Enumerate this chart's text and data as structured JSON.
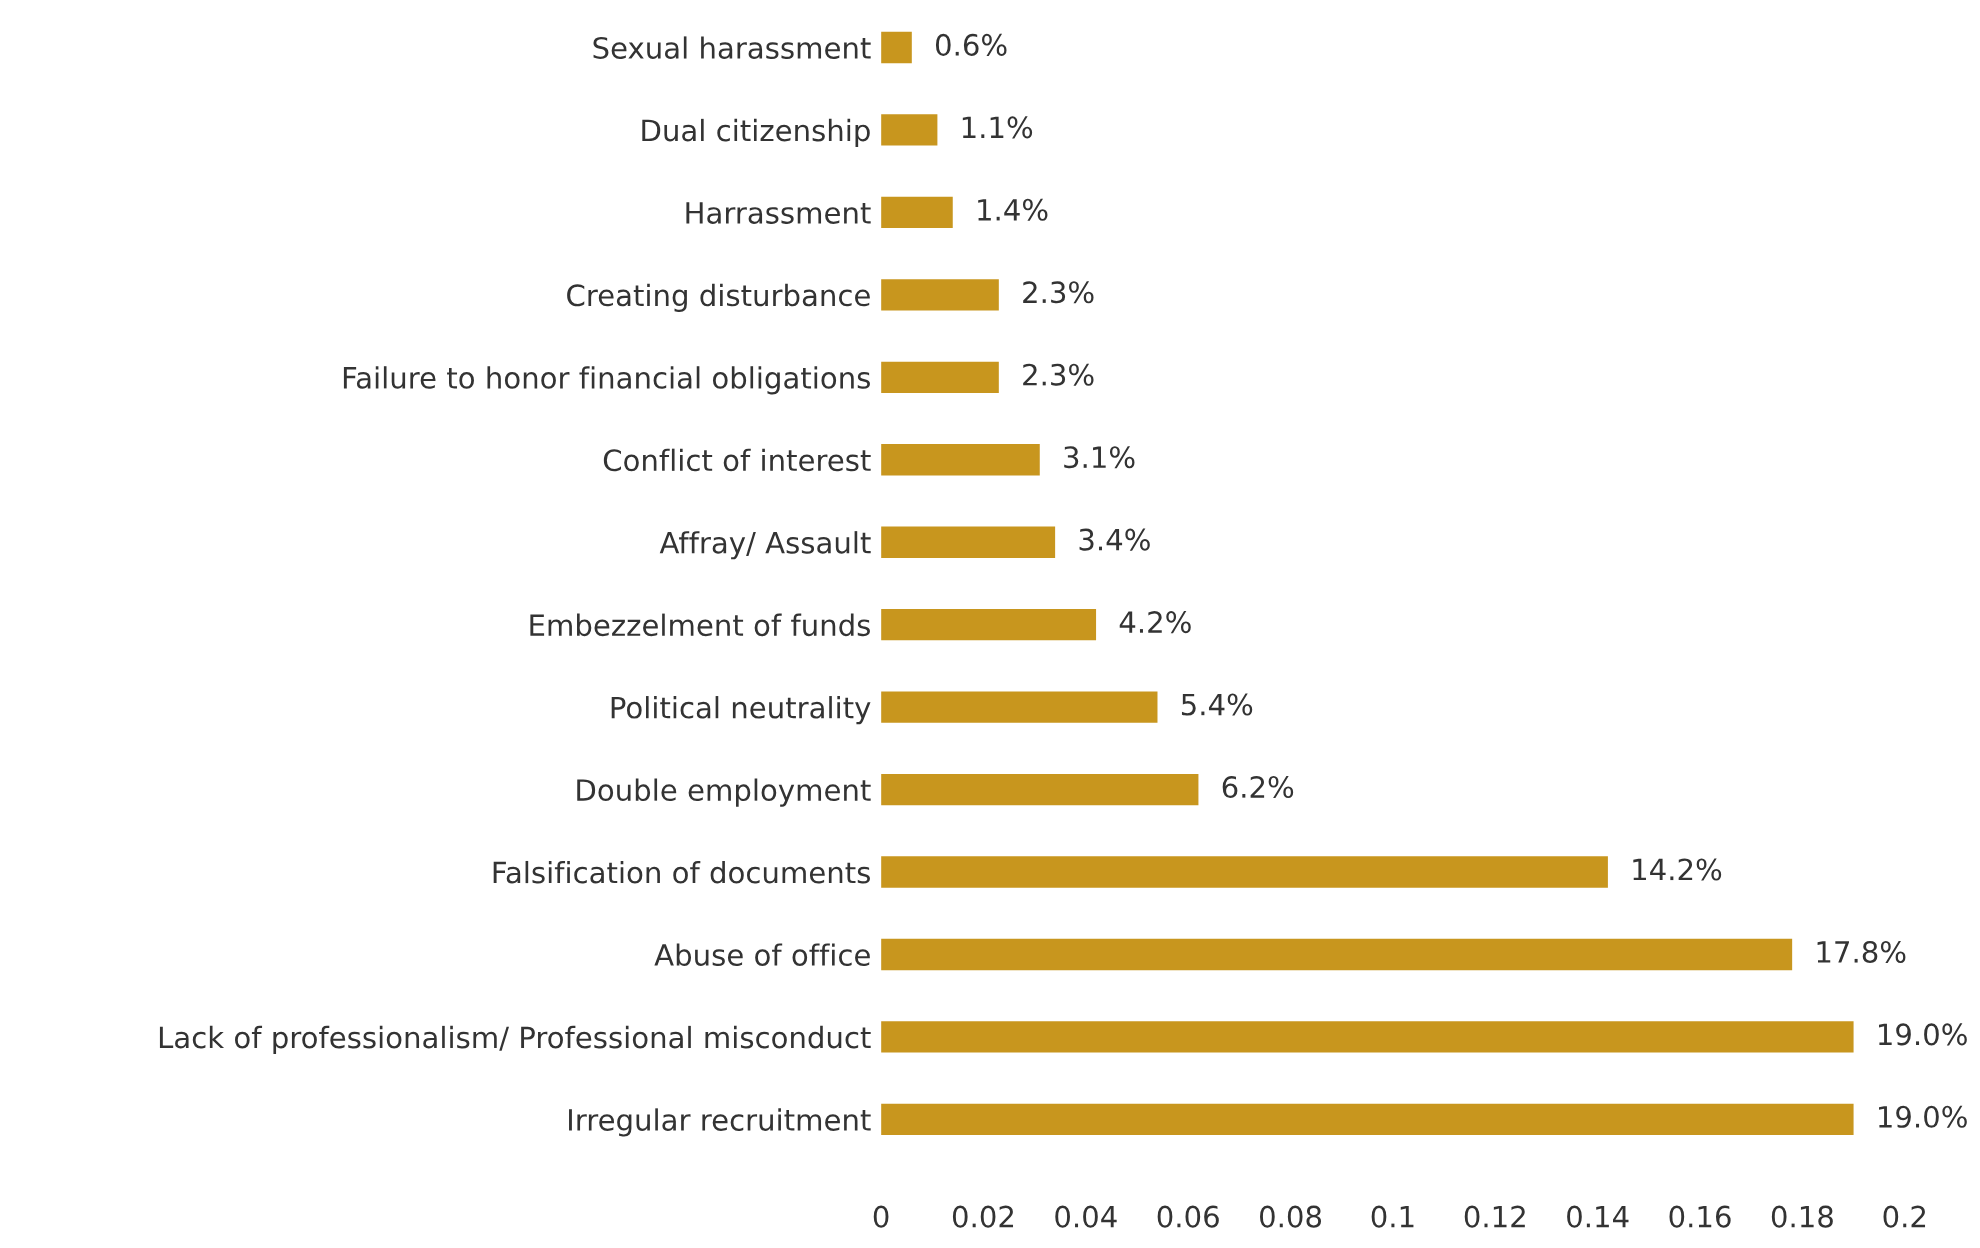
{
  "chart_data": {
    "type": "bar",
    "orientation": "horizontal",
    "categories": [
      "Sexual harassment",
      "Dual citizenship",
      "Harrassment",
      "Creating disturbance",
      "Failure to honor financial obligations",
      "Conflict of interest",
      "Affray/ Assault",
      "Embezzelment of funds",
      "Political neutrality",
      "Double employment",
      "Falsification of documents",
      "Abuse of office",
      "Lack of professionalism/ Professional misconduct",
      "Irregular recruitment"
    ],
    "values": [
      0.006,
      0.011,
      0.014,
      0.023,
      0.023,
      0.031,
      0.034,
      0.042,
      0.054,
      0.062,
      0.142,
      0.178,
      0.19,
      0.19
    ],
    "value_labels": [
      "0.6%",
      "1.1%",
      "1.4%",
      "2.3%",
      "2.3%",
      "3.1%",
      "3.4%",
      "4.2%",
      "5.4%",
      "6.2%",
      "14.2%",
      "17.8%",
      "19.0%",
      "19.0%"
    ],
    "color": "#c8961e",
    "xlim": [
      0,
      0.2
    ],
    "xticks": [
      0,
      0.02,
      0.04,
      0.06,
      0.08,
      0.1,
      0.12,
      0.14,
      0.16,
      0.18,
      0.2
    ],
    "grid": false
  }
}
